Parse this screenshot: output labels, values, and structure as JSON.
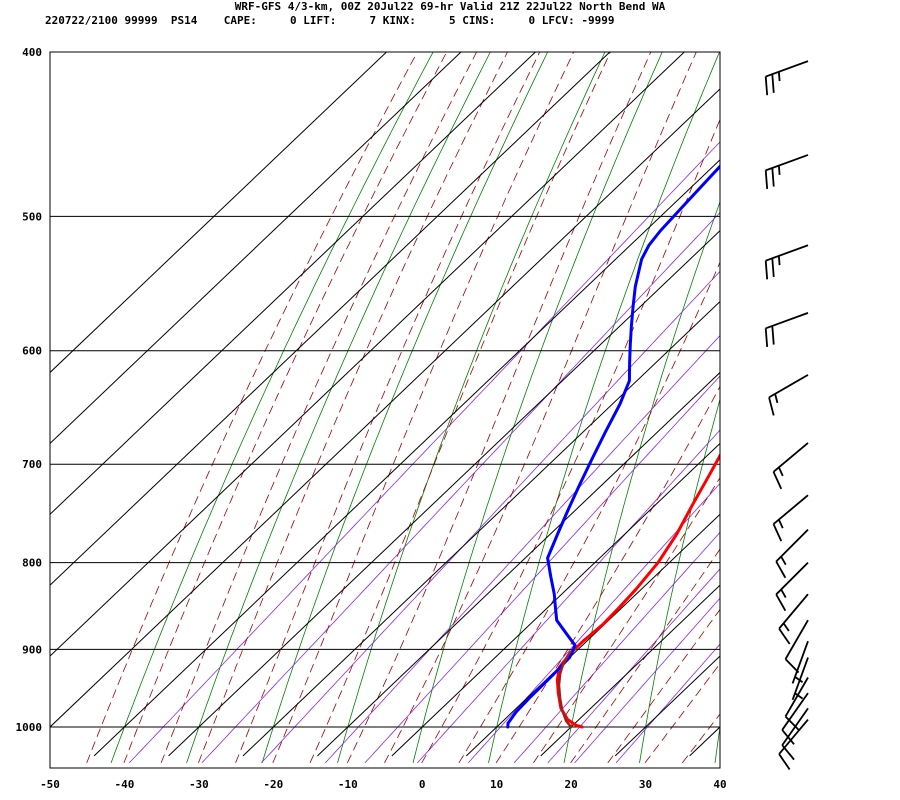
{
  "header": {
    "line1": "WRF-GFS 4/3-km, 00Z 20Jul22 69-hr Valid 21Z 22Jul22 North Bend WA",
    "line2": "220722/2100 99999  PS14    CAPE:     0 LIFT:     7 KINX:     5 CINS:     0 LFCV: -9999"
  },
  "chart_data": {
    "type": "line",
    "title": "WRF-GFS 4/3-km, 00Z 20Jul22 69-hr Valid 21Z 22Jul22 North Bend WA",
    "xlabel": "",
    "ylabel": "",
    "xlim": [
      -50,
      40
    ],
    "ylim": [
      1040,
      400
    ],
    "y_scale": "log",
    "grid": true,
    "x_ticks": [
      "-50",
      "-40",
      "-30",
      "-20",
      "-10",
      "0",
      "10",
      "20",
      "30",
      "40"
    ],
    "y_ticks": [
      "400",
      "500",
      "600",
      "700",
      "800",
      "900",
      "1000"
    ],
    "series": [
      {
        "name": "",
        "color": "#ff0000",
        "points": [
          [
            21.5,
            1000
          ],
          [
            20.5,
            998
          ],
          [
            18.5,
            990
          ],
          [
            16,
            975
          ],
          [
            13.5,
            955
          ],
          [
            11.5,
            938
          ],
          [
            10,
            922
          ],
          [
            9.5,
            905
          ],
          [
            9.5,
            890
          ],
          [
            9.8,
            870
          ],
          [
            9.6,
            850
          ],
          [
            9.3,
            830
          ],
          [
            8.5,
            800
          ],
          [
            7,
            770
          ],
          [
            5,
            740
          ],
          [
            3,
            710
          ],
          [
            0.5,
            675
          ],
          [
            -1.5,
            640
          ],
          [
            -3,
            620
          ],
          [
            -5.5,
            600
          ],
          [
            -8,
            575
          ],
          [
            -10.5,
            550
          ],
          [
            -13,
            525
          ],
          [
            -15.5,
            500
          ],
          [
            -17.5,
            480
          ],
          [
            -20,
            460
          ],
          [
            -22,
            445
          ],
          [
            -24,
            430
          ],
          [
            -26,
            415
          ],
          [
            -27.5,
            405
          ]
        ]
      },
      {
        "name": "",
        "color": "#0000ff",
        "points": [
          [
            11.5,
            1000
          ],
          [
            11,
            995
          ],
          [
            10.5,
            980
          ],
          [
            10.3,
            960
          ],
          [
            10.2,
            930
          ],
          [
            10,
            910
          ],
          [
            9.5,
            902
          ],
          [
            9,
            895
          ],
          [
            6,
            880
          ],
          [
            3,
            865
          ],
          [
            1,
            850
          ],
          [
            -1,
            835
          ],
          [
            -4,
            815
          ],
          [
            -7,
            795
          ],
          [
            -9,
            770
          ],
          [
            -11,
            745
          ],
          [
            -13,
            720
          ],
          [
            -15,
            695
          ],
          [
            -17,
            670
          ],
          [
            -19,
            645
          ],
          [
            -21,
            625
          ],
          [
            -23.5,
            610
          ],
          [
            -26,
            595
          ],
          [
            -28.5,
            580
          ],
          [
            -31,
            565
          ],
          [
            -33.5,
            550
          ],
          [
            -36.5,
            530
          ],
          [
            -37.5,
            520
          ],
          [
            -38,
            510
          ],
          [
            -38.5,
            490
          ],
          [
            -39,
            470
          ],
          [
            -39.5,
            450
          ],
          [
            -40,
            430
          ],
          [
            -40.5,
            410
          ]
        ]
      },
      {
        "name": "",
        "color": "#a02020",
        "points": [
          [
            20,
            1000
          ],
          [
            18.5,
            992
          ],
          [
            16.5,
            978
          ],
          [
            14.5,
            962
          ],
          [
            12.5,
            945
          ],
          [
            11,
            930
          ],
          [
            10.2,
            920
          ],
          [
            9.5,
            908
          ],
          [
            9.3,
            903
          ]
        ]
      }
    ],
    "background_lines": {
      "dry_adiabats": "green solid",
      "moist_adiabats": "dark red dashed",
      "mixing_ratio": "purple solid"
    },
    "wind_barbs": {
      "pressures": [
        405,
        460,
        520,
        570,
        620,
        680,
        730,
        765,
        800,
        835,
        865,
        890,
        910,
        935,
        955,
        975,
        990
      ],
      "direction_deg": [
        250,
        250,
        250,
        250,
        240,
        230,
        230,
        225,
        225,
        220,
        210,
        200,
        200,
        210,
        215,
        215,
        220
      ],
      "speed_kt": [
        25,
        25,
        25,
        20,
        15,
        15,
        15,
        15,
        15,
        15,
        10,
        5,
        5,
        10,
        10,
        10,
        10
      ]
    }
  }
}
